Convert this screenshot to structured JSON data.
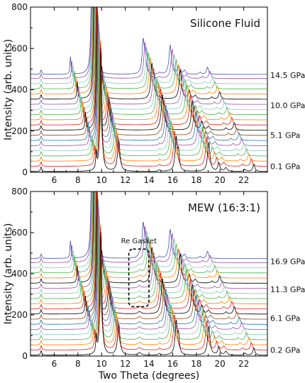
{
  "chart_data": [
    {
      "type": "line",
      "title": "Silicone Fluid",
      "xlabel": "",
      "ylabel": "Intensity (arb. units)",
      "xlim": [
        4,
        24
      ],
      "ylim": [
        0,
        800
      ],
      "x_ticks": [
        "6",
        "8",
        "10",
        "12",
        "14",
        "16",
        "18",
        "20",
        "22"
      ],
      "y_ticks": [
        "0",
        "200",
        "400",
        "600",
        "800"
      ],
      "pressure_labels": [
        {
          "text": "14.5 GPa",
          "y": 470
        },
        {
          "text": "10.0 GPa",
          "y": 325
        },
        {
          "text": "5.1 GPa",
          "y": 180
        },
        {
          "text": "0.1 GPa",
          "y": 30
        }
      ],
      "annotation": null,
      "series": [
        {
          "color": "#000000",
          "offset": 0
        },
        {
          "color": "#e31a1c",
          "offset": 25
        },
        {
          "color": "#ff7f00",
          "offset": 50
        },
        {
          "color": "#4daf4a",
          "offset": 75
        },
        {
          "color": "#7fcdbb",
          "offset": 100
        },
        {
          "color": "#984ea3",
          "offset": 125
        },
        {
          "color": "#1f78b4",
          "offset": 150
        },
        {
          "color": "#8b4513",
          "offset": 175
        },
        {
          "color": "#000000",
          "offset": 200
        },
        {
          "color": "#e31a1c",
          "offset": 225
        },
        {
          "color": "#ff7f00",
          "offset": 250
        },
        {
          "color": "#4daf4a",
          "offset": 275
        },
        {
          "color": "#7fcdbb",
          "offset": 300
        },
        {
          "color": "#984ea3",
          "offset": 325
        },
        {
          "color": "#000000",
          "offset": 350
        },
        {
          "color": "#ff7f00",
          "offset": 375
        },
        {
          "color": "#4daf4a",
          "offset": 400
        },
        {
          "color": "#7fcdbb",
          "offset": 425
        },
        {
          "color": "#984ea3",
          "offset": 450
        },
        {
          "color": "#3f51b5",
          "offset": 470
        }
      ]
    },
    {
      "type": "line",
      "title": "MEW (16:3:1)",
      "xlabel": "Two Theta (degrees)",
      "ylabel": "Intensity (arb. units)",
      "xlim": [
        4,
        24
      ],
      "ylim": [
        0,
        800
      ],
      "x_ticks": [
        "6",
        "8",
        "10",
        "12",
        "14",
        "16",
        "18",
        "20",
        "22"
      ],
      "y_ticks": [
        "0",
        "200",
        "400",
        "600",
        "800"
      ],
      "pressure_labels": [
        {
          "text": "16.9 GPa",
          "y": 460
        },
        {
          "text": "11.3 GPa",
          "y": 325
        },
        {
          "text": "6.1 GPa",
          "y": 185
        },
        {
          "text": "0.2 GPa",
          "y": 30
        }
      ],
      "annotation": {
        "text": "Re Gasket",
        "x0": 12.3,
        "x1": 14.0,
        "y0": 240,
        "y1": 520
      },
      "series": [
        {
          "color": "#000000",
          "offset": 0
        },
        {
          "color": "#e31a1c",
          "offset": 25
        },
        {
          "color": "#ff7f00",
          "offset": 50
        },
        {
          "color": "#4daf4a",
          "offset": 75
        },
        {
          "color": "#7fcdbb",
          "offset": 100
        },
        {
          "color": "#984ea3",
          "offset": 125
        },
        {
          "color": "#1f78b4",
          "offset": 150
        },
        {
          "color": "#8b4513",
          "offset": 175
        },
        {
          "color": "#000000",
          "offset": 200
        },
        {
          "color": "#e31a1c",
          "offset": 225
        },
        {
          "color": "#ff7f00",
          "offset": 250
        },
        {
          "color": "#4daf4a",
          "offset": 275
        },
        {
          "color": "#7fcdbb",
          "offset": 300
        },
        {
          "color": "#984ea3",
          "offset": 325
        },
        {
          "color": "#000000",
          "offset": 350
        },
        {
          "color": "#ff7f00",
          "offset": 375
        },
        {
          "color": "#4daf4a",
          "offset": 400
        },
        {
          "color": "#7fcdbb",
          "offset": 425
        },
        {
          "color": "#984ea3",
          "offset": 450
        },
        {
          "color": "#3f51b5",
          "offset": 470
        }
      ]
    }
  ]
}
